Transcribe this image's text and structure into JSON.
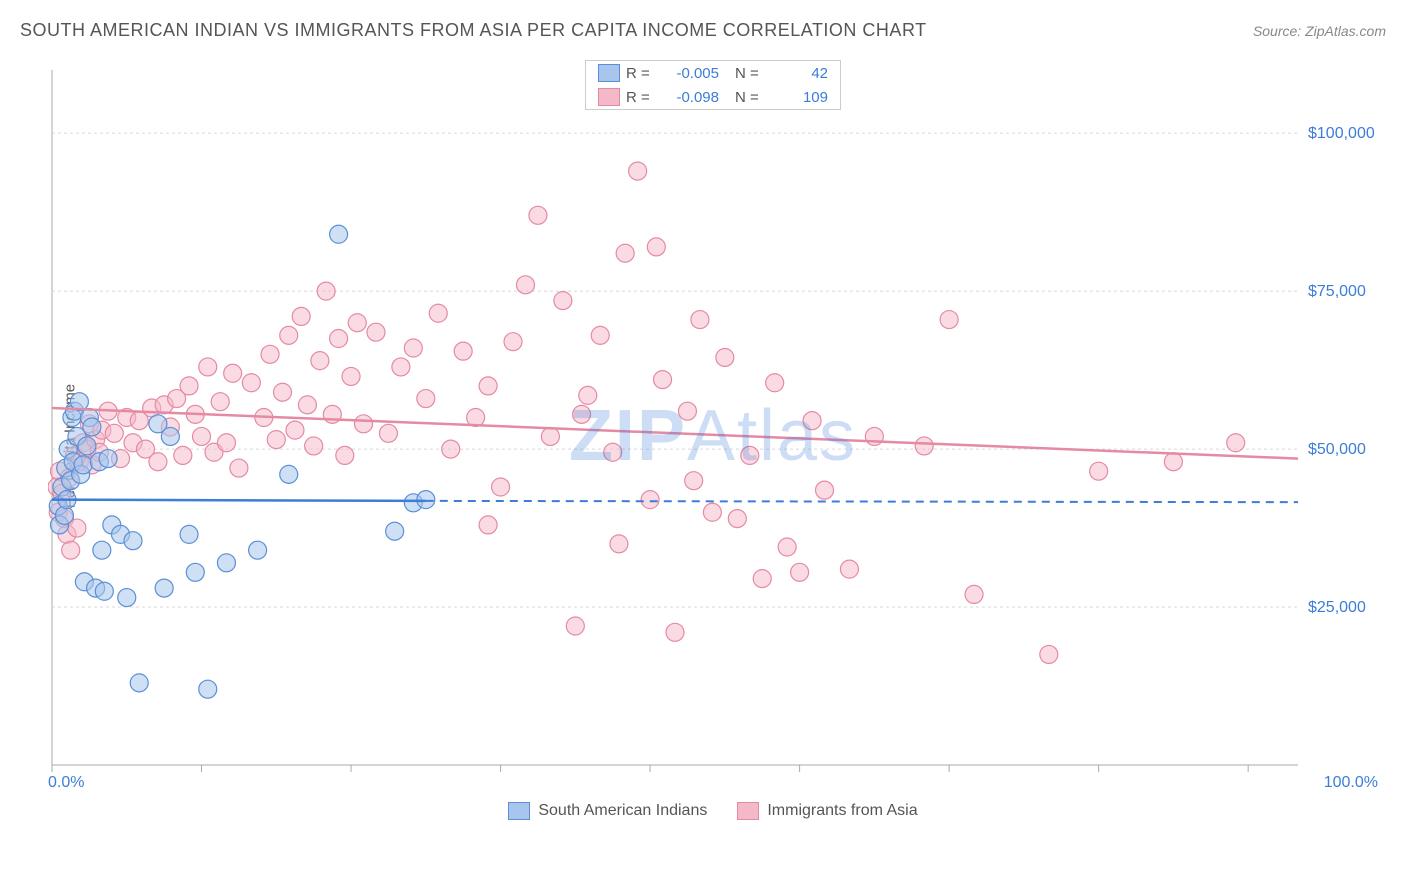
{
  "title": "SOUTH AMERICAN INDIAN VS IMMIGRANTS FROM ASIA PER CAPITA INCOME CORRELATION CHART",
  "source_label": "Source: ZipAtlas.com",
  "ylabel": "Per Capita Income",
  "watermark_bold": "ZIP",
  "watermark_light": "Atlas",
  "chart": {
    "type": "scatter",
    "xlim": [
      0,
      100
    ],
    "ylim": [
      0,
      110000
    ],
    "y_ticks": [
      25000,
      50000,
      75000,
      100000
    ],
    "y_tick_labels": [
      "$25,000",
      "$50,000",
      "$75,000",
      "$100,000"
    ],
    "x_tick_positions": [
      0,
      12,
      24,
      36,
      48,
      60,
      72,
      84,
      96
    ],
    "x_axis_min_label": "0.0%",
    "x_axis_max_label": "100.0%",
    "background_color": "#ffffff",
    "grid_color": "#d8d8d8",
    "axis_color": "#aaaaaa",
    "tick_label_color": "#3b7dd8",
    "marker_radius": 9,
    "marker_stroke_width": 1.2,
    "trend_line_width": 2.5
  },
  "series": [
    {
      "name": "South American Indians",
      "fill_color": "#a8c6ed",
      "fill_opacity": 0.55,
      "stroke_color": "#5b8fd6",
      "R": "-0.005",
      "N": "42",
      "trend": {
        "x1": 0,
        "y1": 42000,
        "x2": 30,
        "y2": 41800,
        "solid_until_x": 30,
        "dash_to_x": 100,
        "dash_y": 41600
      },
      "points": [
        [
          0.5,
          41000
        ],
        [
          0.6,
          38000
        ],
        [
          0.8,
          44000
        ],
        [
          1.0,
          39500
        ],
        [
          1.1,
          47000
        ],
        [
          1.2,
          42000
        ],
        [
          1.3,
          50000
        ],
        [
          1.5,
          45000
        ],
        [
          1.6,
          55000
        ],
        [
          1.7,
          48000
        ],
        [
          1.8,
          56000
        ],
        [
          2.0,
          52000
        ],
        [
          2.2,
          57500
        ],
        [
          2.3,
          46000
        ],
        [
          2.5,
          47500
        ],
        [
          2.6,
          29000
        ],
        [
          2.8,
          50500
        ],
        [
          3.0,
          55000
        ],
        [
          3.2,
          53500
        ],
        [
          3.5,
          28000
        ],
        [
          3.8,
          48000
        ],
        [
          4.0,
          34000
        ],
        [
          4.2,
          27500
        ],
        [
          4.5,
          48500
        ],
        [
          4.8,
          38000
        ],
        [
          5.5,
          36500
        ],
        [
          6.0,
          26500
        ],
        [
          6.5,
          35500
        ],
        [
          7.0,
          13000
        ],
        [
          8.5,
          54000
        ],
        [
          9.0,
          28000
        ],
        [
          9.5,
          52000
        ],
        [
          11.0,
          36500
        ],
        [
          11.5,
          30500
        ],
        [
          12.5,
          12000
        ],
        [
          14.0,
          32000
        ],
        [
          16.5,
          34000
        ],
        [
          19.0,
          46000
        ],
        [
          23.0,
          84000
        ],
        [
          27.5,
          37000
        ],
        [
          29.0,
          41500
        ],
        [
          30.0,
          42000
        ]
      ]
    },
    {
      "name": "Immigrants from Asia",
      "fill_color": "#f5b8c8",
      "fill_opacity": 0.5,
      "stroke_color": "#e58aa3",
      "R": "-0.098",
      "N": "109",
      "trend": {
        "x1": 0,
        "y1": 56500,
        "x2": 100,
        "y2": 48500
      },
      "points": [
        [
          0.4,
          44000
        ],
        [
          0.5,
          40000
        ],
        [
          0.6,
          46500
        ],
        [
          0.8,
          43000
        ],
        [
          1.0,
          39000
        ],
        [
          1.2,
          36500
        ],
        [
          1.4,
          45500
        ],
        [
          1.5,
          34000
        ],
        [
          1.8,
          49000
        ],
        [
          2.0,
          37500
        ],
        [
          2.2,
          48000
        ],
        [
          2.5,
          51000
        ],
        [
          2.8,
          50000
        ],
        [
          3.0,
          54000
        ],
        [
          3.2,
          47500
        ],
        [
          3.5,
          51500
        ],
        [
          3.8,
          49500
        ],
        [
          4.0,
          53000
        ],
        [
          4.5,
          56000
        ],
        [
          5.0,
          52500
        ],
        [
          5.5,
          48500
        ],
        [
          6.0,
          55000
        ],
        [
          6.5,
          51000
        ],
        [
          7.0,
          54500
        ],
        [
          7.5,
          50000
        ],
        [
          8.0,
          56500
        ],
        [
          8.5,
          48000
        ],
        [
          9.0,
          57000
        ],
        [
          9.5,
          53500
        ],
        [
          10.0,
          58000
        ],
        [
          10.5,
          49000
        ],
        [
          11.0,
          60000
        ],
        [
          11.5,
          55500
        ],
        [
          12.0,
          52000
        ],
        [
          12.5,
          63000
        ],
        [
          13.0,
          49500
        ],
        [
          13.5,
          57500
        ],
        [
          14.0,
          51000
        ],
        [
          14.5,
          62000
        ],
        [
          15.0,
          47000
        ],
        [
          16.0,
          60500
        ],
        [
          17.0,
          55000
        ],
        [
          17.5,
          65000
        ],
        [
          18.0,
          51500
        ],
        [
          18.5,
          59000
        ],
        [
          19.0,
          68000
        ],
        [
          19.5,
          53000
        ],
        [
          20.0,
          71000
        ],
        [
          20.5,
          57000
        ],
        [
          21.0,
          50500
        ],
        [
          21.5,
          64000
        ],
        [
          22.0,
          75000
        ],
        [
          22.5,
          55500
        ],
        [
          23.0,
          67500
        ],
        [
          23.5,
          49000
        ],
        [
          24.0,
          61500
        ],
        [
          24.5,
          70000
        ],
        [
          25.0,
          54000
        ],
        [
          26.0,
          68500
        ],
        [
          27.0,
          52500
        ],
        [
          28.0,
          63000
        ],
        [
          29.0,
          66000
        ],
        [
          30.0,
          58000
        ],
        [
          31.0,
          71500
        ],
        [
          32.0,
          50000
        ],
        [
          33.0,
          65500
        ],
        [
          34.0,
          55000
        ],
        [
          35.0,
          60000
        ],
        [
          36.0,
          44000
        ],
        [
          37.0,
          67000
        ],
        [
          38.0,
          76000
        ],
        [
          39.0,
          87000
        ],
        [
          40.0,
          52000
        ],
        [
          41.0,
          73500
        ],
        [
          42.0,
          22000
        ],
        [
          43.0,
          58500
        ],
        [
          44.0,
          68000
        ],
        [
          45.0,
          49500
        ],
        [
          46.0,
          81000
        ],
        [
          47.0,
          94000
        ],
        [
          48.0,
          42000
        ],
        [
          48.5,
          82000
        ],
        [
          49.0,
          61000
        ],
        [
          50.0,
          21000
        ],
        [
          51.0,
          56000
        ],
        [
          52.0,
          70500
        ],
        [
          53.0,
          40000
        ],
        [
          54.0,
          64500
        ],
        [
          55.0,
          39000
        ],
        [
          56.0,
          49000
        ],
        [
          57.0,
          29500
        ],
        [
          58.0,
          60500
        ],
        [
          59.0,
          34500
        ],
        [
          60.0,
          30500
        ],
        [
          61.0,
          54500
        ],
        [
          62.0,
          43500
        ],
        [
          64.0,
          31000
        ],
        [
          66.0,
          52000
        ],
        [
          70.0,
          50500
        ],
        [
          72.0,
          70500
        ],
        [
          74.0,
          27000
        ],
        [
          80.0,
          17500
        ],
        [
          84.0,
          46500
        ],
        [
          90.0,
          48000
        ],
        [
          95.0,
          51000
        ],
        [
          35.0,
          38000
        ],
        [
          42.5,
          55500
        ],
        [
          45.5,
          35000
        ],
        [
          51.5,
          45000
        ]
      ]
    }
  ],
  "legend_bottom": [
    {
      "label": "South American Indians",
      "fill": "#a8c6ed",
      "stroke": "#5b8fd6"
    },
    {
      "label": "Immigrants from Asia",
      "fill": "#f5b8c8",
      "stroke": "#e58aa3"
    }
  ]
}
